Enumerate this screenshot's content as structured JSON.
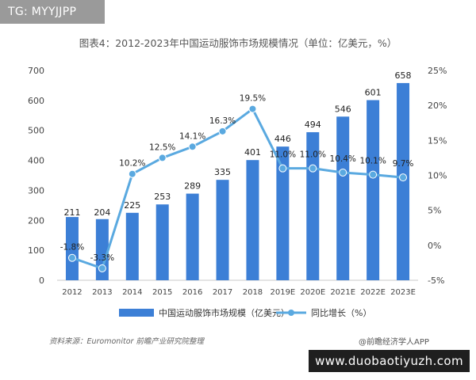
{
  "tag_text": "TG: MYYJJPP",
  "footer": {
    "source": "资料来源：Euromonitor 前瞻产业研究院整理",
    "brand": "@前瞻经济学人APP"
  },
  "watermark": "www.duobaotiyuzh.com",
  "colors": {
    "bar": "#3c7fd6",
    "line": "#5aa9e0",
    "axis_text": "#444444"
  },
  "chart_data": {
    "type": "bar",
    "title": "图表4：2012-2023年中国运动服饰市场规模情况（单位：亿美元，%）",
    "categories": [
      "2012",
      "2013",
      "2014",
      "2015",
      "2016",
      "2017",
      "2018",
      "2019E",
      "2020E",
      "2021E",
      "2022E",
      "2023E"
    ],
    "series": [
      {
        "name": "中国运动服饰市场规模（亿美元）",
        "type": "bar",
        "axis": "left",
        "values": [
          211,
          204,
          225,
          253,
          289,
          335,
          401,
          446,
          494,
          546,
          601,
          658
        ],
        "labels": [
          "211",
          "204",
          "225",
          "253",
          "289",
          "335",
          "401",
          "446",
          "494",
          "546",
          "601",
          "658"
        ]
      },
      {
        "name": "同比增长（%）",
        "type": "line",
        "axis": "right",
        "values": [
          -1.8,
          -3.3,
          10.2,
          12.5,
          14.1,
          16.3,
          19.5,
          11.0,
          11.0,
          10.4,
          10.1,
          9.7
        ],
        "labels": [
          "-1.8%",
          "-3.3%",
          "10.2%",
          "12.5%",
          "14.1%",
          "16.3%",
          "19.5%",
          "11.0%",
          "11.0%",
          "10.4%",
          "10.1%",
          "9.7%"
        ]
      }
    ],
    "y_left": {
      "range": [
        0,
        700
      ],
      "ticks": [
        "0",
        "100",
        "200",
        "300",
        "400",
        "500",
        "600",
        "700"
      ],
      "tick_values": [
        0,
        100,
        200,
        300,
        400,
        500,
        600,
        700
      ]
    },
    "y_right": {
      "range": [
        -5,
        25
      ],
      "ticks": [
        "-5%",
        "0%",
        "5%",
        "10%",
        "15%",
        "20%",
        "25%"
      ],
      "tick_values": [
        -5,
        0,
        5,
        10,
        15,
        20,
        25
      ]
    },
    "grid": false,
    "legend_position": "bottom"
  }
}
